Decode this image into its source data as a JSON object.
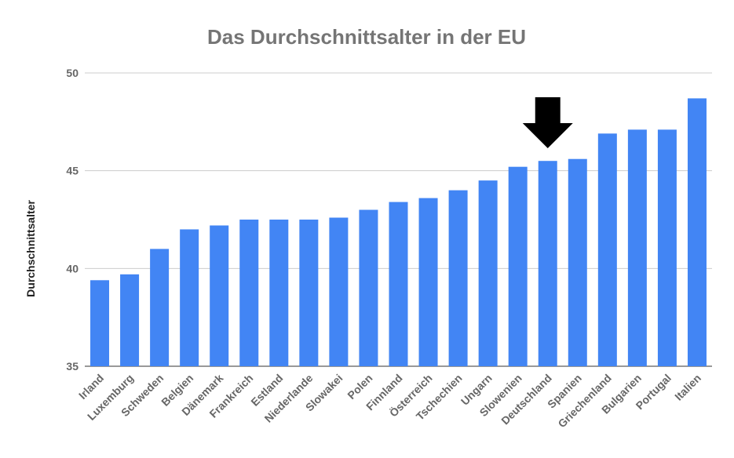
{
  "chart_data": {
    "type": "bar",
    "title": "Das Durchschnittsalter in der EU",
    "xlabel": "",
    "ylabel": "Durchschnittsalter",
    "ylim": [
      35,
      50
    ],
    "yticks": [
      35,
      40,
      45,
      50
    ],
    "grid": true,
    "legend": "none",
    "bar_color": "#4285f4",
    "categories": [
      "Irland",
      "Luxemburg",
      "Schweden",
      "Belgien",
      "Dänemark",
      "Frankreich",
      "Estland",
      "Niederlande",
      "Slowakei",
      "Polen",
      "Finnland",
      "Österreich",
      "Tschechien",
      "Ungarn",
      "Slowenien",
      "Deutschland",
      "Spanien",
      "Griechenland",
      "Bulgarien",
      "Portugal",
      "Italien"
    ],
    "values": [
      39.4,
      39.7,
      41.0,
      42.0,
      42.2,
      42.5,
      42.5,
      42.5,
      42.6,
      43.0,
      43.4,
      43.6,
      44.0,
      44.5,
      45.2,
      45.5,
      45.6,
      46.9,
      47.1,
      47.1,
      48.7
    ],
    "annotations": [
      {
        "type": "arrow-down-icon",
        "category": "Deutschland",
        "color": "#000000"
      }
    ]
  }
}
